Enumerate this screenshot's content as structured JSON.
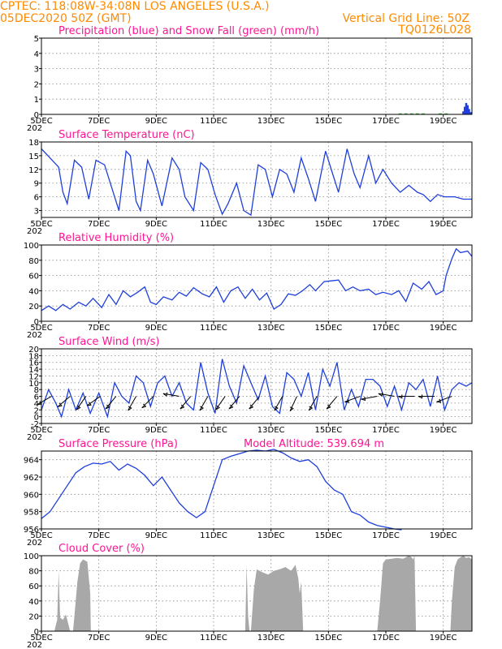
{
  "header": {
    "line1_left": "CPTEC:   118:08W-34:08N   LOS ANGELES (U.S.A.)",
    "line2_left": "05DEC2020 50Z (GMT)",
    "line2_right": "Vertical Grid Line: 50Z",
    "line3_right": "TQ0126L028"
  },
  "colors": {
    "header": "#ff8a00",
    "title": "#ff1493",
    "line": "#1f3fdc",
    "snow": "#22aa22",
    "cloud": "#a8a8a8",
    "wind": "#000000"
  },
  "x_axis": {
    "ticks": [
      "5DEC",
      "7DEC",
      "9DEC",
      "11DEC",
      "13DEC",
      "15DEC",
      "17DEC",
      "19DEC"
    ],
    "tick_positions_days": [
      0,
      2,
      4,
      6,
      8,
      10,
      12,
      14
    ],
    "range_days": [
      0,
      15
    ],
    "year_label_fragment": "202"
  },
  "chart_data": [
    {
      "type": "bar",
      "title": "Precipitation (blue) and Snow Fall (green) (mm/h)",
      "ylim": [
        0,
        5
      ],
      "yticks": [
        0,
        1,
        2,
        3,
        4,
        5
      ],
      "series": [
        {
          "name": "Precipitation",
          "color": "#1f3fdc",
          "x": [
            14.7,
            14.75,
            14.8,
            14.85,
            14.9,
            14.95
          ],
          "values": [
            0.2,
            0.5,
            0.75,
            0.6,
            0.35,
            0.15
          ]
        },
        {
          "name": "Snow Fall",
          "color": "#22aa22",
          "x": [
            12.5,
            12.7,
            12.9,
            13.1,
            13.3,
            13.9,
            14.1
          ],
          "values": [
            0.03,
            0.03,
            0.03,
            0.03,
            0.03,
            0.03,
            0.03
          ]
        }
      ]
    },
    {
      "type": "line",
      "title": "Surface Temperature (nC)",
      "ylim": [
        1.5,
        18
      ],
      "yticks": [
        3,
        6,
        9,
        12,
        15,
        18
      ],
      "x": [
        0,
        0.3,
        0.6,
        0.75,
        0.9,
        1.15,
        1.4,
        1.65,
        1.9,
        2.2,
        2.45,
        2.7,
        2.95,
        3.1,
        3.3,
        3.45,
        3.7,
        3.9,
        4.2,
        4.55,
        4.8,
        5.0,
        5.3,
        5.55,
        5.8,
        6.05,
        6.3,
        6.5,
        6.8,
        7.05,
        7.3,
        7.55,
        7.8,
        8.05,
        8.3,
        8.55,
        8.8,
        9.05,
        9.3,
        9.55,
        9.9,
        10.15,
        10.35,
        10.65,
        10.9,
        11.1,
        11.4,
        11.65,
        11.9,
        12.2,
        12.5,
        12.8,
        13.1,
        13.3,
        13.55,
        13.8,
        14.05,
        14.4,
        14.7,
        15.0
      ],
      "values": [
        16.5,
        14.5,
        12.5,
        7,
        4.5,
        14,
        12.5,
        5.5,
        14,
        13,
        8,
        3,
        16,
        15,
        5,
        3,
        14,
        11,
        4,
        14.5,
        12,
        6,
        3,
        13.5,
        12,
        6.5,
        2.2,
        4.5,
        9,
        3,
        2,
        13,
        12,
        6,
        12,
        11,
        7,
        14.5,
        10,
        5,
        16,
        11,
        7,
        16.5,
        11,
        8,
        15,
        9,
        12,
        9,
        7,
        8.5,
        7,
        6.5,
        5,
        6.5,
        6,
        6,
        5.5,
        5.5
      ]
    },
    {
      "type": "line",
      "title": "Relative Humidity (%)",
      "ylim": [
        0,
        100
      ],
      "yticks": [
        0,
        20,
        40,
        60,
        80,
        100
      ],
      "x": [
        0,
        0.25,
        0.5,
        0.75,
        1.0,
        1.3,
        1.55,
        1.8,
        2.1,
        2.35,
        2.6,
        2.85,
        3.1,
        3.35,
        3.6,
        3.8,
        4.0,
        4.25,
        4.55,
        4.8,
        5.05,
        5.3,
        5.6,
        5.85,
        6.1,
        6.35,
        6.6,
        6.85,
        7.1,
        7.35,
        7.6,
        7.85,
        8.1,
        8.35,
        8.6,
        8.85,
        9.1,
        9.35,
        9.55,
        9.85,
        10.1,
        10.35,
        10.6,
        10.85,
        11.1,
        11.4,
        11.65,
        11.9,
        12.2,
        12.45,
        12.7,
        12.95,
        13.25,
        13.5,
        13.75,
        14.0,
        14.1,
        14.3,
        14.45,
        14.6,
        14.85,
        15.0
      ],
      "values": [
        14,
        20,
        14,
        22,
        16,
        25,
        20,
        30,
        18,
        35,
        22,
        40,
        32,
        38,
        45,
        25,
        22,
        32,
        28,
        38,
        33,
        44,
        36,
        32,
        45,
        25,
        40,
        45,
        30,
        42,
        28,
        37,
        16,
        22,
        36,
        34,
        40,
        48,
        40,
        52,
        53,
        54,
        40,
        45,
        40,
        42,
        35,
        38,
        35,
        40,
        26,
        50,
        42,
        52,
        35,
        40,
        60,
        82,
        95,
        90,
        92,
        85
      ]
    },
    {
      "type": "line",
      "title": "Surface Wind (m/s)",
      "ylim": [
        -2,
        20
      ],
      "yticks": [
        -2,
        0,
        2,
        4,
        6,
        8,
        10,
        12,
        14,
        16,
        18,
        20
      ],
      "x": [
        0,
        0.25,
        0.5,
        0.7,
        0.95,
        1.2,
        1.45,
        1.7,
        2.0,
        2.3,
        2.55,
        2.8,
        3.05,
        3.3,
        3.55,
        3.8,
        4.05,
        4.3,
        4.55,
        4.8,
        5.05,
        5.3,
        5.55,
        5.8,
        6.05,
        6.3,
        6.55,
        6.8,
        7.05,
        7.3,
        7.55,
        7.8,
        8.05,
        8.3,
        8.55,
        8.8,
        9.05,
        9.3,
        9.55,
        9.8,
        10.05,
        10.3,
        10.55,
        10.8,
        11.05,
        11.3,
        11.55,
        11.8,
        12.05,
        12.3,
        12.55,
        12.8,
        13.05,
        13.3,
        13.55,
        13.8,
        14.05,
        14.3,
        14.55,
        14.8,
        15.0
      ],
      "values": [
        2,
        8,
        4,
        0,
        8,
        2,
        7,
        1,
        7,
        0,
        10,
        6,
        4,
        12,
        10,
        3,
        10,
        12,
        6,
        10,
        4,
        2,
        16,
        7,
        1,
        17,
        9,
        4,
        15,
        10,
        5,
        12,
        3,
        1,
        13,
        11,
        6,
        13,
        2,
        14,
        9,
        16,
        2,
        8,
        3,
        11,
        11,
        9,
        3,
        9,
        2,
        10,
        8,
        11,
        3,
        12,
        2,
        8,
        10,
        9,
        10
      ]
    },
    {
      "type": "line",
      "title": "Surface Pressure (hPa)",
      "annotation": "Model Altitude: 539.694 m",
      "ylim": [
        956,
        965
      ],
      "yticks": [
        956,
        958,
        960,
        962,
        964
      ],
      "x": [
        0,
        0.3,
        0.6,
        0.9,
        1.2,
        1.5,
        1.8,
        2.1,
        2.4,
        2.7,
        3.0,
        3.3,
        3.6,
        3.9,
        4.2,
        4.5,
        4.8,
        5.1,
        5.4,
        5.7,
        6.0,
        6.3,
        6.6,
        6.9,
        7.2,
        7.5,
        7.8,
        8.1,
        8.4,
        8.7,
        9.0,
        9.3,
        9.6,
        9.9,
        10.2,
        10.5,
        10.8,
        11.1,
        11.4,
        11.7,
        12.0,
        12.3,
        12.55
      ],
      "values": [
        957.2,
        958,
        959.5,
        961,
        962.5,
        963.2,
        963.6,
        963.5,
        963.8,
        962.8,
        963.5,
        963,
        962.2,
        961,
        962,
        960.5,
        959,
        958,
        957.3,
        958,
        961,
        964,
        964.4,
        964.7,
        965,
        965.1,
        965,
        965.2,
        964.8,
        964.2,
        963.8,
        964,
        963.2,
        961.5,
        960.5,
        960,
        958,
        957.6,
        956.8,
        956.4,
        956.2,
        956,
        955.9
      ]
    },
    {
      "type": "area",
      "title": "Cloud Cover (%)",
      "ylim": [
        0,
        100
      ],
      "yticks": [
        0,
        20,
        40,
        60,
        80,
        100
      ],
      "x": [
        0.35,
        0.45,
        0.55,
        0.6,
        0.65,
        0.75,
        0.85,
        0.9,
        1.0,
        1.1,
        1.15,
        1.25,
        1.35,
        1.45,
        1.6,
        1.7,
        1.72,
        7.1,
        7.15,
        7.2,
        7.25,
        7.3,
        7.4,
        7.5,
        7.6,
        7.7,
        7.9,
        8.1,
        8.3,
        8.5,
        8.7,
        8.85,
        8.95,
        9.0,
        9.05,
        9.1,
        9.12,
        11.7,
        11.8,
        11.9,
        12.0,
        12.2,
        12.4,
        12.6,
        12.8,
        12.9,
        12.95,
        13.0,
        13.05,
        14.25,
        14.3,
        14.4,
        14.5,
        14.6,
        14.7,
        14.8,
        14.9,
        15.0
      ],
      "values": [
        0,
        0,
        15,
        80,
        18,
        15,
        22,
        15,
        0,
        0,
        20,
        65,
        90,
        95,
        92,
        50,
        0,
        0,
        88,
        20,
        0,
        0,
        55,
        82,
        80,
        78,
        75,
        80,
        82,
        85,
        80,
        88,
        70,
        50,
        65,
        20,
        0,
        0,
        40,
        90,
        95,
        96,
        97,
        96,
        100,
        98,
        95,
        100,
        0,
        0,
        40,
        85,
        95,
        98,
        100,
        97,
        98,
        95
      ]
    }
  ],
  "wind_arrows": {
    "description_units": "direction arrows along wind panel",
    "x_days": [
      0.35,
      1.0,
      1.55,
      2.05,
      2.6,
      3.3,
      3.9,
      4.8,
      5.2,
      5.8,
      6.4,
      6.9,
      7.6,
      8.4,
      8.9,
      9.6,
      10.3,
      11.1,
      11.7,
      12.3,
      13.0,
      13.7,
      14.3
    ],
    "from_to_angle_deg": [
      210,
      220,
      235,
      215,
      230,
      240,
      225,
      170,
      230,
      240,
      235,
      230,
      230,
      240,
      245,
      240,
      230,
      200,
      190,
      170,
      180,
      180,
      200
    ]
  }
}
